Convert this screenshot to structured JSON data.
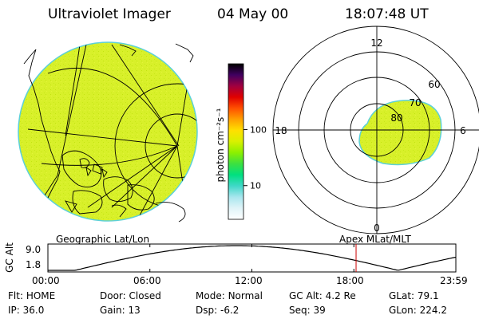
{
  "header": {
    "title": "Ultraviolet Imager",
    "date": "04 May 00",
    "time": "18:07:48 UT"
  },
  "colorbar": {
    "label": "photon cm⁻²s⁻¹",
    "ticks": [
      {
        "label": "100",
        "value": 100
      },
      {
        "label": "10",
        "value": 10
      }
    ],
    "colors": [
      "#ffffff",
      "#e0f4f8",
      "#a8e6ee",
      "#40d8c8",
      "#00e080",
      "#3ce040",
      "#8cf000",
      "#d8f000",
      "#ffe000",
      "#ffa000",
      "#ff5000",
      "#e00000",
      "#a00040",
      "#400060",
      "#000000"
    ]
  },
  "left_panel": {
    "label": "Geographic Lat/Lon",
    "fill_color": "#d8f02a"
  },
  "right_panel": {
    "label": "Apex MLat/MLT",
    "mlt_labels": {
      "top": "12",
      "left": "18",
      "right": "6",
      "bottom": "0"
    },
    "mlat_labels": [
      "60",
      "70",
      "80"
    ],
    "fill_color": "#d8f02a"
  },
  "altitude_plot": {
    "ylabel": "GC Alt",
    "yticks": [
      "9.0",
      "1.8"
    ],
    "xticks": [
      "00:00",
      "06:00",
      "12:00",
      "18:00",
      "23:59"
    ],
    "current_time_hours": 18.13,
    "marker_color": "#cc0000"
  },
  "info": {
    "row1": [
      {
        "label": "Flt:",
        "value": "HOME"
      },
      {
        "label": "Door:",
        "value": "Closed"
      },
      {
        "label": "Mode:",
        "value": "Normal"
      },
      {
        "label": "GC Alt:",
        "value": "4.2 Re"
      },
      {
        "label": "GLat:",
        "value": "79.1"
      }
    ],
    "row2": [
      {
        "label": "IP:",
        "value": "36.0"
      },
      {
        "label": "Gain:",
        "value": "13"
      },
      {
        "label": "Dsp:",
        "value": "-6.2"
      },
      {
        "label": "Seq:",
        "value": "39"
      },
      {
        "label": "GLon:",
        "value": "224.2"
      }
    ]
  }
}
